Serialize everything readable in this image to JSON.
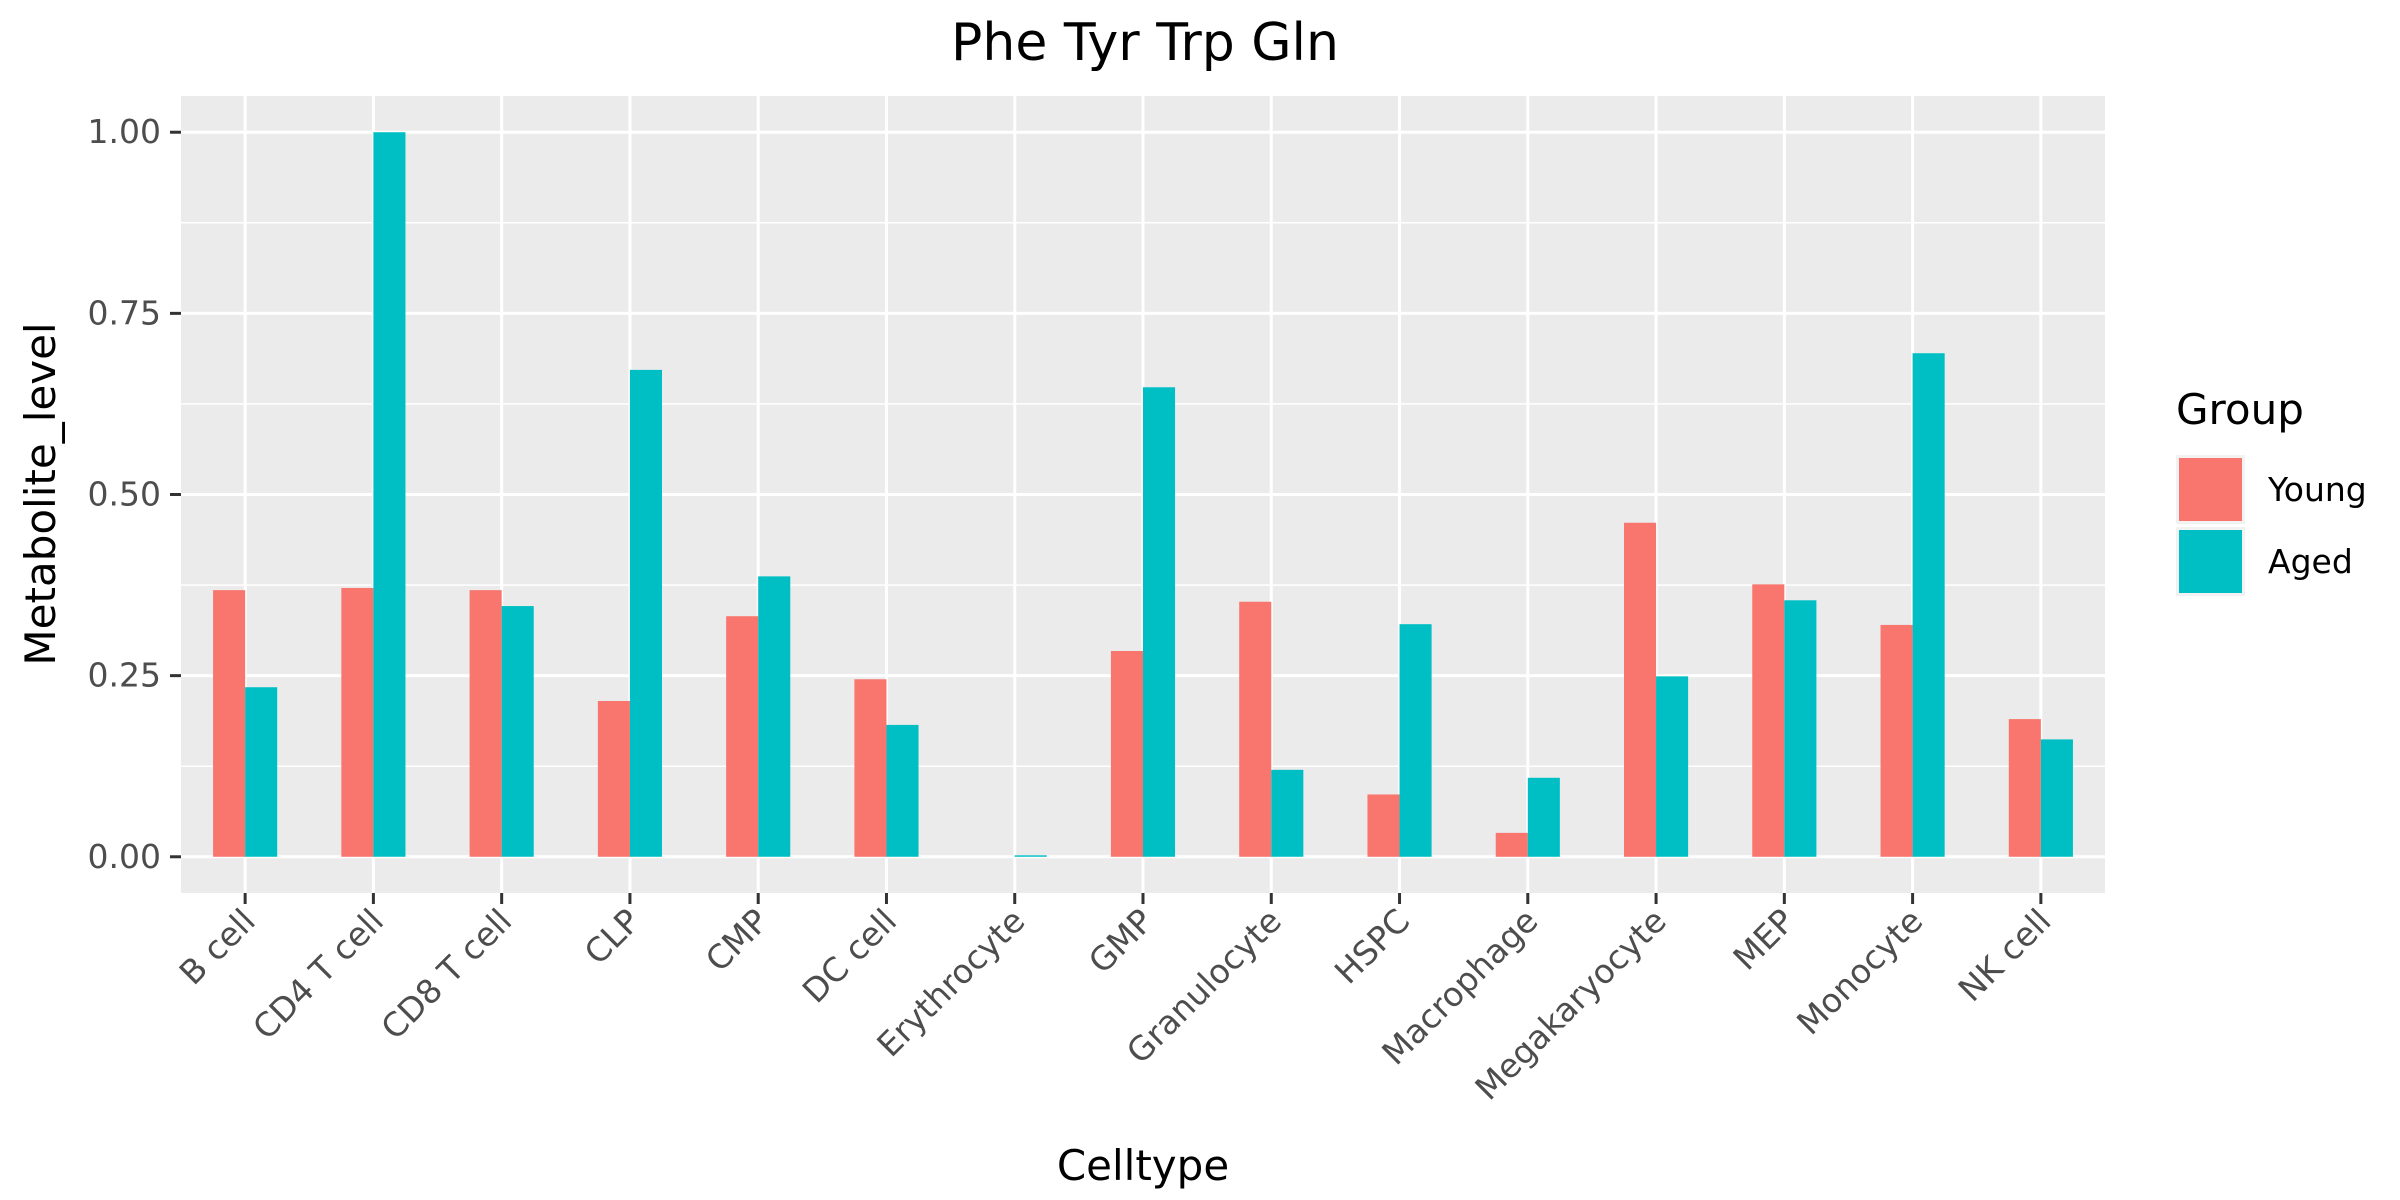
{
  "chart_data": {
    "type": "bar",
    "title": "Phe Tyr Trp Gln",
    "xlabel": "Celltype",
    "ylabel": "Metabolite_level",
    "categories": [
      "B cell",
      "CD4 T cell",
      "CD8 T cell",
      "CLP",
      "CMP",
      "DC cell",
      "Erythrocyte",
      "GMP",
      "Granulocyte",
      "HSPC",
      "Macrophage",
      "Megakaryocyte",
      "MEP",
      "Monocyte",
      "NK cell"
    ],
    "series": [
      {
        "name": "Young",
        "color": "#F8766D",
        "values": [
          0.368,
          0.371,
          0.368,
          0.215,
          0.332,
          0.245,
          null,
          0.284,
          0.352,
          0.086,
          0.033,
          0.461,
          0.376,
          0.32,
          0.19
        ]
      },
      {
        "name": "Aged",
        "color": "#00BFC4",
        "values": [
          0.234,
          1.0,
          0.346,
          0.672,
          0.387,
          0.182,
          0.002,
          0.648,
          0.12,
          0.321,
          0.109,
          0.249,
          0.354,
          0.695,
          0.162
        ]
      }
    ],
    "ylim": [
      -0.05,
      1.05
    ],
    "yticks": [
      0.0,
      0.25,
      0.5,
      0.75,
      1.0
    ],
    "ytick_labels": [
      "0.00",
      "0.25",
      "0.50",
      "0.75",
      "1.00"
    ],
    "legend_title": "Group",
    "legend_position": "right",
    "grid": true,
    "panel_background": "#EBEBEB",
    "grid_color": "#FFFFFF"
  }
}
